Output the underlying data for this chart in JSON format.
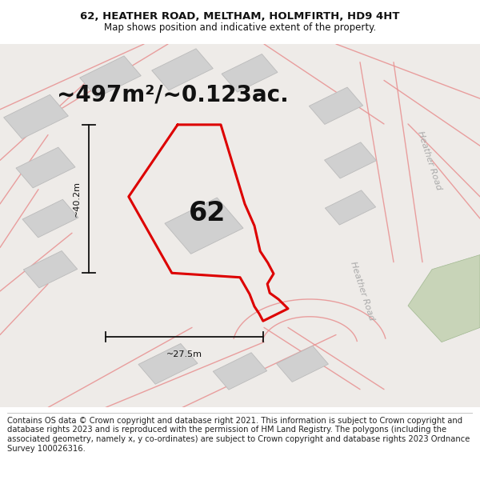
{
  "title_line1": "62, HEATHER ROAD, MELTHAM, HOLMFIRTH, HD9 4HT",
  "title_line2": "Map shows position and indicative extent of the property.",
  "footer_text": "Contains OS data © Crown copyright and database right 2021. This information is subject to Crown copyright and database rights 2023 and is reproduced with the permission of HM Land Registry. The polygons (including the associated geometry, namely x, y co-ordinates) are subject to Crown copyright and database rights 2023 Ordnance Survey 100026316.",
  "area_label": "~497m²/~0.123ac.",
  "label_62": "62",
  "dim_height": "~40.2m",
  "dim_width": "~27.5m",
  "road_label1": "Heather Road",
  "road_label2": "Heather Road",
  "bg_color": "#ffffff",
  "map_bg": "#eeeeee",
  "plot_outline_color": "#dd0000",
  "road_color": "#e89090",
  "building_color": "#d0d0d0",
  "building_edge_color": "#bbbbbb",
  "dim_line_color": "#111111",
  "green_color": "#c8d4b8",
  "title_fontsize": 9.5,
  "subtitle_fontsize": 8.5,
  "area_fontsize": 20,
  "label_fontsize": 24,
  "dim_fontsize": 8,
  "road_label_fontsize": 8,
  "footer_fontsize": 7.2
}
